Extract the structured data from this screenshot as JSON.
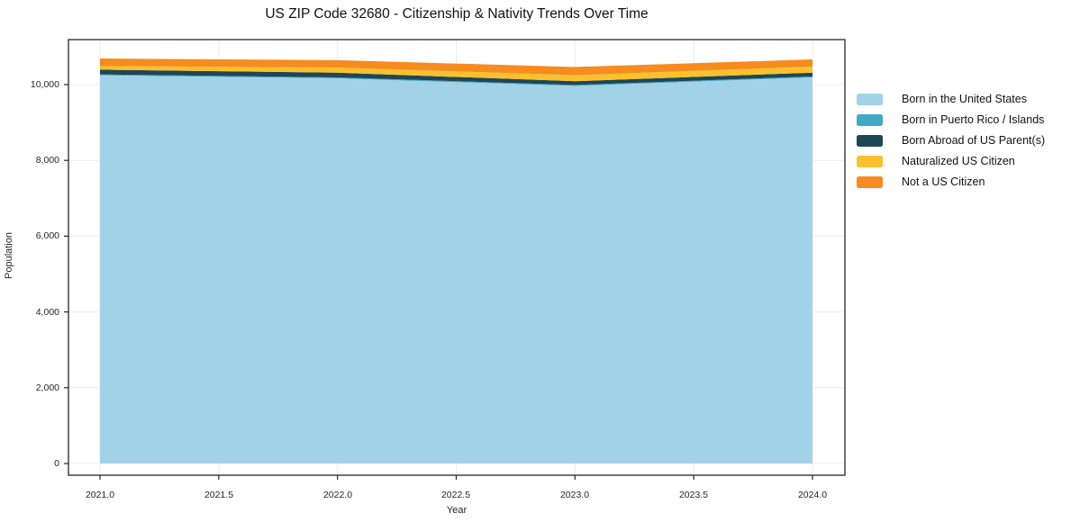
{
  "title": "US ZIP Code 32680 - Citizenship & Nativity Trends Over Time",
  "chart_data": {
    "type": "area",
    "stacked": true,
    "title": "US ZIP Code 32680 - Citizenship & Nativity Trends Over Time",
    "xlabel": "Year",
    "ylabel": "Population",
    "x": [
      2021,
      2022,
      2023,
      2024
    ],
    "x_tick_values": [
      2021.0,
      2021.5,
      2022.0,
      2022.5,
      2023.0,
      2023.5,
      2024.0
    ],
    "x_tick_labels": [
      "2021.0",
      "2021.5",
      "2022.0",
      "2022.5",
      "2023.0",
      "2023.5",
      "2024.0"
    ],
    "y_tick_values": [
      0,
      2000,
      4000,
      6000,
      8000,
      10000
    ],
    "y_tick_labels": [
      "0",
      "2,000",
      "4,000",
      "6,000",
      "8,000",
      "10,000"
    ],
    "xlim": [
      2020.87,
      2024.14
    ],
    "ylim": [
      -310,
      11190
    ],
    "grid": true,
    "legend_position": "outside-right",
    "background": "#ffffff",
    "grid_color": "#ececec",
    "axis_color": "#262626",
    "series": [
      {
        "name": "Born in the United States",
        "color": "#a2d2e8",
        "values": [
          10245,
          10165,
          9965,
          10190
        ]
      },
      {
        "name": "Born in Puerto Rico / Islands",
        "color": "#43a7c6",
        "values": [
          25,
          25,
          25,
          25
        ]
      },
      {
        "name": "Born Abroad of US Parent(s)",
        "color": "#1e4656",
        "values": [
          125,
          125,
          100,
          100
        ]
      },
      {
        "name": "Naturalized US Citizen",
        "color": "#fbc02d",
        "values": [
          95,
          135,
          160,
          160
        ]
      },
      {
        "name": "Not a US Citizen",
        "color": "#f68b1f",
        "values": [
          200,
          195,
          215,
          190
        ]
      }
    ]
  }
}
